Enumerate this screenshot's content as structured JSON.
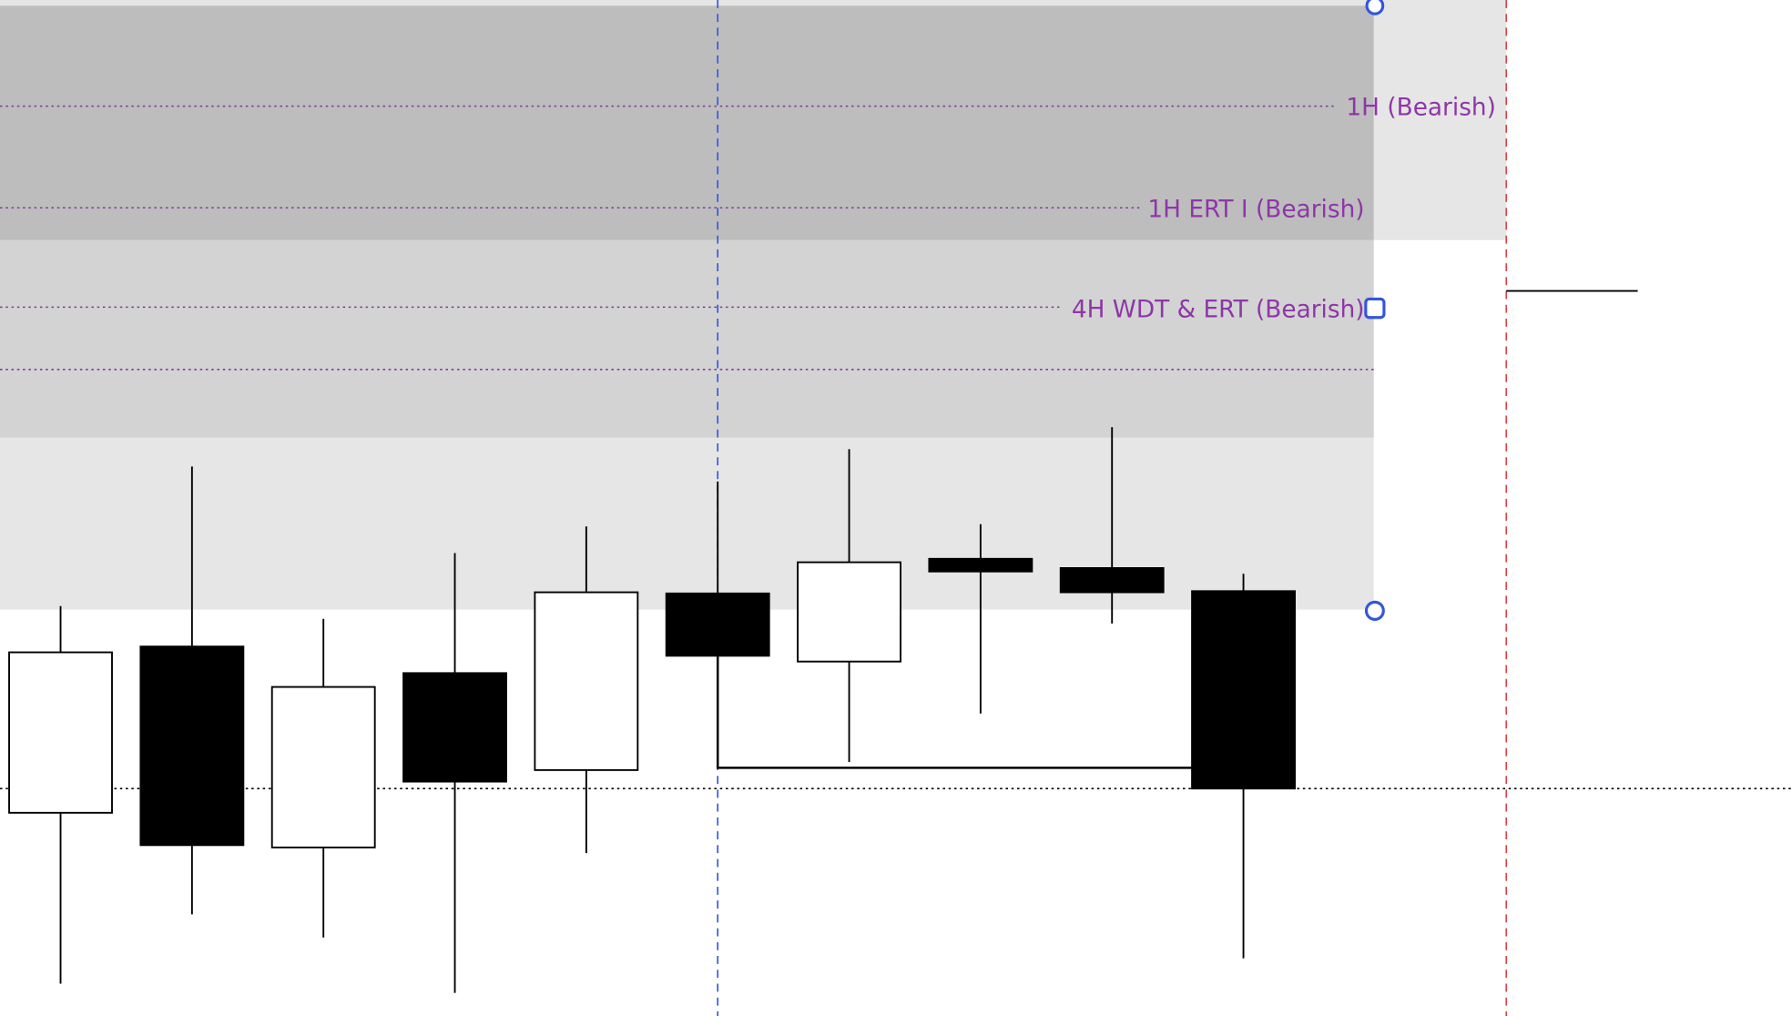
{
  "chart_data": {
    "type": "candlestick",
    "open": [
      176,
      320,
      146,
      297,
      213,
      366,
      307,
      396,
      388,
      368
    ],
    "high": [
      355,
      476,
      344,
      401,
      424,
      463,
      491,
      426,
      510,
      383
    ],
    "low": [
      28,
      88,
      68,
      20,
      141,
      215,
      220,
      262,
      340,
      50
    ],
    "close": [
      315,
      148,
      285,
      203,
      367,
      312,
      393,
      385,
      367,
      197
    ],
    "ylim": [
      0,
      880
    ],
    "up_color": "#ffffff",
    "down_color": "#000000",
    "wick_color": "#000000",
    "annotations": [
      "1H (Bearish)",
      "1H ERT I (Bearish)",
      "4H WDT & ERT (Bearish)"
    ],
    "annotation_color": "#8e36a8"
  }
}
